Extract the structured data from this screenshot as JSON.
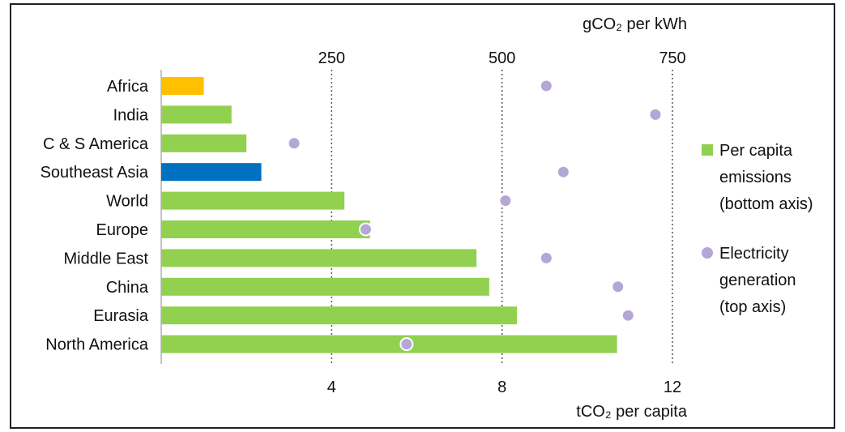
{
  "chart_data": {
    "type": "bar",
    "orientation": "horizontal",
    "categories": [
      "Africa",
      "India",
      "C & S America",
      "Southeast Asia",
      "World",
      "Europe",
      "Middle East",
      "China",
      "Eurasia",
      "North America"
    ],
    "series": [
      {
        "name": "Per capita emissions (bottom axis)",
        "axis": "bottom",
        "values": [
          1.0,
          1.65,
          2.0,
          2.35,
          4.3,
          4.9,
          7.4,
          7.7,
          8.35,
          10.7
        ],
        "color": "#92d050",
        "bar_colors": [
          "#ffc000",
          "#92d050",
          "#92d050",
          "#0070c0",
          "#92d050",
          "#92d050",
          "#92d050",
          "#92d050",
          "#92d050",
          "#92d050"
        ]
      },
      {
        "name": "Electricity generation (top axis)",
        "axis": "top",
        "values": [
          565,
          725,
          195,
          590,
          505,
          300,
          565,
          670,
          685,
          360
        ],
        "color": "#b4a7d6"
      }
    ],
    "bottom_axis": {
      "label": "tCO₂ per capita",
      "range": [
        0,
        12
      ],
      "ticks": [
        4,
        8,
        12
      ]
    },
    "top_axis": {
      "label": "gCO₂ per kWh",
      "range": [
        0,
        750
      ],
      "ticks": [
        250,
        500,
        750
      ]
    },
    "gridlines": "dotted vertical at top-axis ticks",
    "legend": {
      "placement": "right",
      "items": [
        {
          "lines": [
            "Per capita",
            "emissions",
            "(bottom axis)"
          ],
          "marker": "square",
          "color": "#92d050"
        },
        {
          "lines": [
            "Electricity",
            "generation",
            "(top axis)"
          ],
          "marker": "circle",
          "color": "#b4a7d6"
        }
      ]
    }
  }
}
